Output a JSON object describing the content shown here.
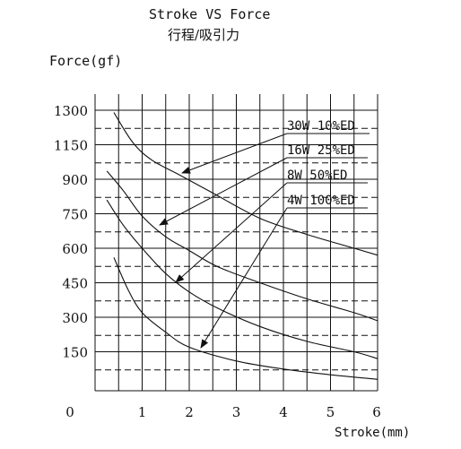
{
  "chart_data": {
    "type": "line",
    "title": "Stroke VS   Force",
    "subtitle": "行程/吸引力",
    "ylabel": "Force(gf)",
    "xlabel": "Stroke(mm)",
    "xlim": [
      0,
      6
    ],
    "ylim": [
      0,
      1300
    ],
    "x_ticks": [
      "0",
      "1",
      "2",
      "3",
      "4",
      "5",
      "6"
    ],
    "y_ticks": [
      "1300",
      "1150",
      "900",
      "750",
      "600",
      "450",
      "300",
      "150"
    ],
    "grid": true,
    "series": [
      {
        "name": "30W 10%ED",
        "x": [
          0.4,
          0.8,
          1.2,
          1.8,
          2.5,
          3.5,
          4.5,
          5.5,
          6.0
        ],
        "y": [
          1290,
          1160,
          1040,
          930,
          840,
          730,
          660,
          600,
          570
        ]
      },
      {
        "name": "16W 25%ED",
        "x": [
          0.25,
          0.6,
          1.0,
          1.5,
          2.0,
          2.6,
          3.5,
          4.5,
          5.5,
          6.0
        ],
        "y": [
          960,
          850,
          740,
          650,
          590,
          520,
          450,
          380,
          320,
          285
        ]
      },
      {
        "name": "8W  50%ED",
        "x": [
          0.25,
          0.6,
          1.0,
          1.5,
          2.0,
          2.6,
          3.5,
          4.5,
          5.5,
          6.0
        ],
        "y": [
          810,
          700,
          600,
          490,
          410,
          340,
          260,
          195,
          150,
          120
        ]
      },
      {
        "name": "4W 100%ED",
        "x": [
          0.4,
          0.7,
          1.0,
          1.5,
          2.0,
          3.0,
          4.0,
          5.0,
          6.0
        ],
        "y": [
          560,
          420,
          320,
          235,
          170,
          110,
          75,
          50,
          30
        ]
      }
    ]
  }
}
